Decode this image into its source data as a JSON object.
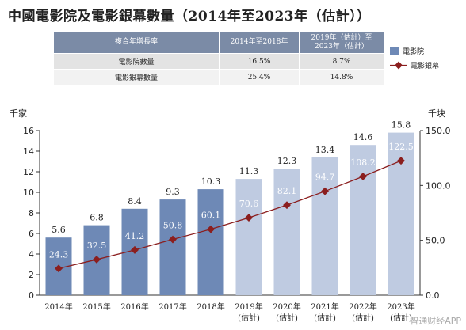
{
  "title": "中國電影院及電影銀幕數量（2014年至2023年（估計））",
  "cagr_table": {
    "headers": [
      "複合年增長率",
      "2014年至2018年",
      "2019年（估計）至2023年（估計）"
    ],
    "rows": [
      {
        "label": "電影院數量",
        "v1": "16.5%",
        "v2": "8.7%"
      },
      {
        "label": "電影銀幕數量",
        "v1": "25.4%",
        "v2": "14.8%"
      }
    ]
  },
  "legend": {
    "bar_label": "電影院",
    "line_label": "電影銀幕"
  },
  "watermark": "智通财经APP",
  "colors": {
    "bar_actual": "#6e89b6",
    "bar_estimate": "#bfcbe1",
    "line": "#8b1e1e",
    "table_header": "#7b8ba6"
  },
  "chart_data": {
    "type": "bar",
    "categories": [
      "2014年",
      "2015年",
      "2016年",
      "2017年",
      "2018年",
      "2019年",
      "2020年",
      "2021年",
      "2022年",
      "2023年"
    ],
    "category_sub": [
      "",
      "",
      "",
      "",
      "",
      "(估計)",
      "(估計)",
      "(估計)",
      "(估計)",
      "(估計)"
    ],
    "estimate_flags": [
      false,
      false,
      false,
      false,
      false,
      true,
      true,
      true,
      true,
      true
    ],
    "series": [
      {
        "name": "電影院",
        "type": "bar",
        "axis": "left",
        "values": [
          5.6,
          6.8,
          8.4,
          9.3,
          10.3,
          11.3,
          12.3,
          13.4,
          14.6,
          15.8
        ],
        "labels": [
          "5.6",
          "6.8",
          "8.4",
          "9.3",
          "10.3",
          "11.3",
          "12.3",
          "13.4",
          "14.6",
          "15.8"
        ]
      },
      {
        "name": "電影銀幕",
        "type": "line",
        "axis": "right",
        "values": [
          24.3,
          32.5,
          41.2,
          50.8,
          60.1,
          70.6,
          82.1,
          94.7,
          108.2,
          122.5
        ],
        "labels": [
          "24.3",
          "32.5",
          "41.2",
          "50.8",
          "60.1",
          "70.6",
          "82.1",
          "94.7",
          "108.2",
          "122.5"
        ]
      }
    ],
    "left_axis": {
      "unit": "千家",
      "ylim": [
        0,
        16
      ],
      "ticks": [
        "0",
        "2",
        "4",
        "6",
        "8",
        "10",
        "12",
        "14",
        "16"
      ]
    },
    "right_axis": {
      "unit": "千块",
      "ylim": [
        0,
        150
      ],
      "ticks": [
        "0.0",
        "50.0",
        "100.0",
        "150.0"
      ]
    },
    "grid": false,
    "legend_position": "right"
  }
}
